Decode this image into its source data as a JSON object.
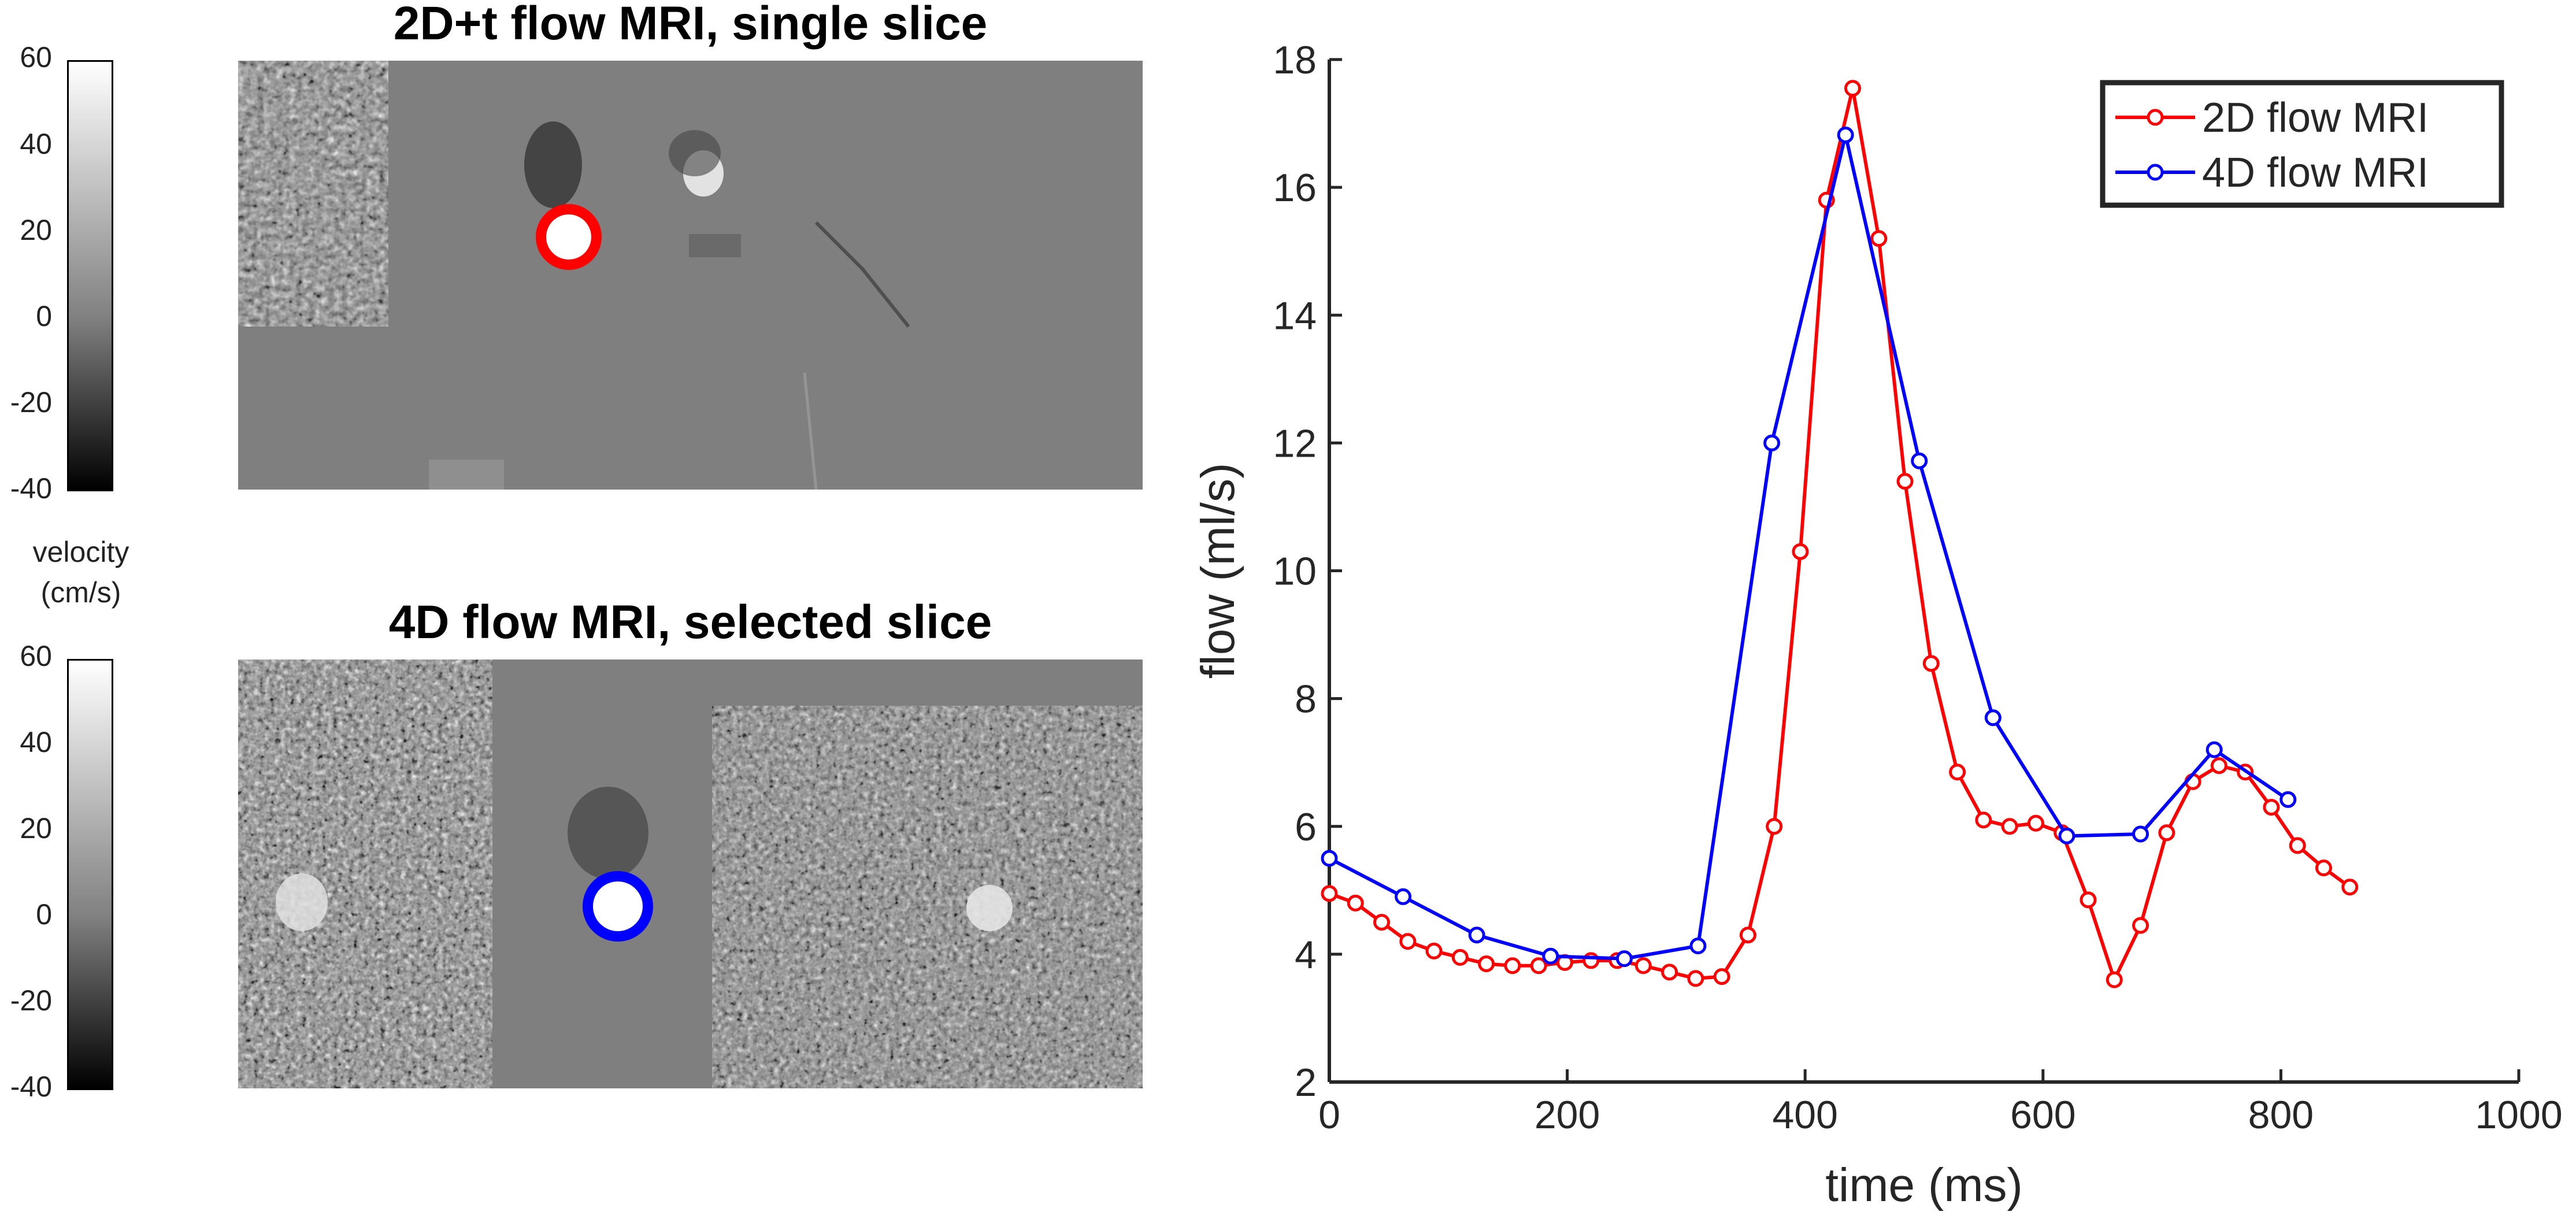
{
  "left": {
    "panel_top_title": "2D+t flow MRI, single slice",
    "panel_bottom_title": "4D flow MRI, selected slice",
    "colorbar_ticks": [
      "60",
      "40",
      "20",
      "0",
      "-20",
      "-40"
    ],
    "colorbar_label_line1": "velocity",
    "colorbar_label_line2": "(cm/s)",
    "colorbar_range": [
      -40,
      60
    ],
    "roi_colors": {
      "top": "#ff0000",
      "bottom": "#0000ff"
    }
  },
  "chart_data": {
    "type": "line",
    "xlabel": "time (ms)",
    "ylabel": "flow (ml/s)",
    "xlim": [
      0,
      1000
    ],
    "ylim": [
      2,
      18
    ],
    "xticks": [
      0,
      200,
      400,
      600,
      800,
      1000
    ],
    "yticks": [
      2,
      4,
      6,
      8,
      10,
      12,
      14,
      16,
      18
    ],
    "legend_position": "top-right",
    "grid": false,
    "series": [
      {
        "name": "2D flow MRI",
        "color": "#ff0000",
        "marker": "circle",
        "x": [
          0,
          22,
          44,
          66,
          88,
          110,
          132,
          154,
          176,
          198,
          220,
          242,
          264,
          286,
          308,
          330,
          352,
          374,
          396,
          418,
          440,
          462,
          484,
          506,
          528,
          550,
          572,
          594,
          616,
          638,
          660,
          682,
          704,
          726,
          748,
          770,
          792,
          814,
          836,
          858
        ],
        "y": [
          4.95,
          4.8,
          4.5,
          4.2,
          4.05,
          3.95,
          3.85,
          3.82,
          3.82,
          3.87,
          3.9,
          3.9,
          3.82,
          3.72,
          3.62,
          3.65,
          4.3,
          6.0,
          10.3,
          15.8,
          17.55,
          15.2,
          11.4,
          8.55,
          6.85,
          6.1,
          6.0,
          6.05,
          5.9,
          4.85,
          3.6,
          4.45,
          5.9,
          6.7,
          6.95,
          6.85,
          6.3,
          5.7,
          5.35,
          5.05
        ]
      },
      {
        "name": "4D flow MRI",
        "color": "#0000ff",
        "marker": "circle",
        "x": [
          0,
          62,
          124,
          186,
          248,
          310,
          372,
          434,
          496,
          558,
          620,
          682,
          744,
          806
        ],
        "y": [
          5.5,
          4.9,
          4.3,
          3.97,
          3.93,
          4.13,
          12.0,
          16.82,
          11.72,
          7.7,
          5.85,
          5.88,
          7.2,
          6.42
        ]
      }
    ]
  }
}
